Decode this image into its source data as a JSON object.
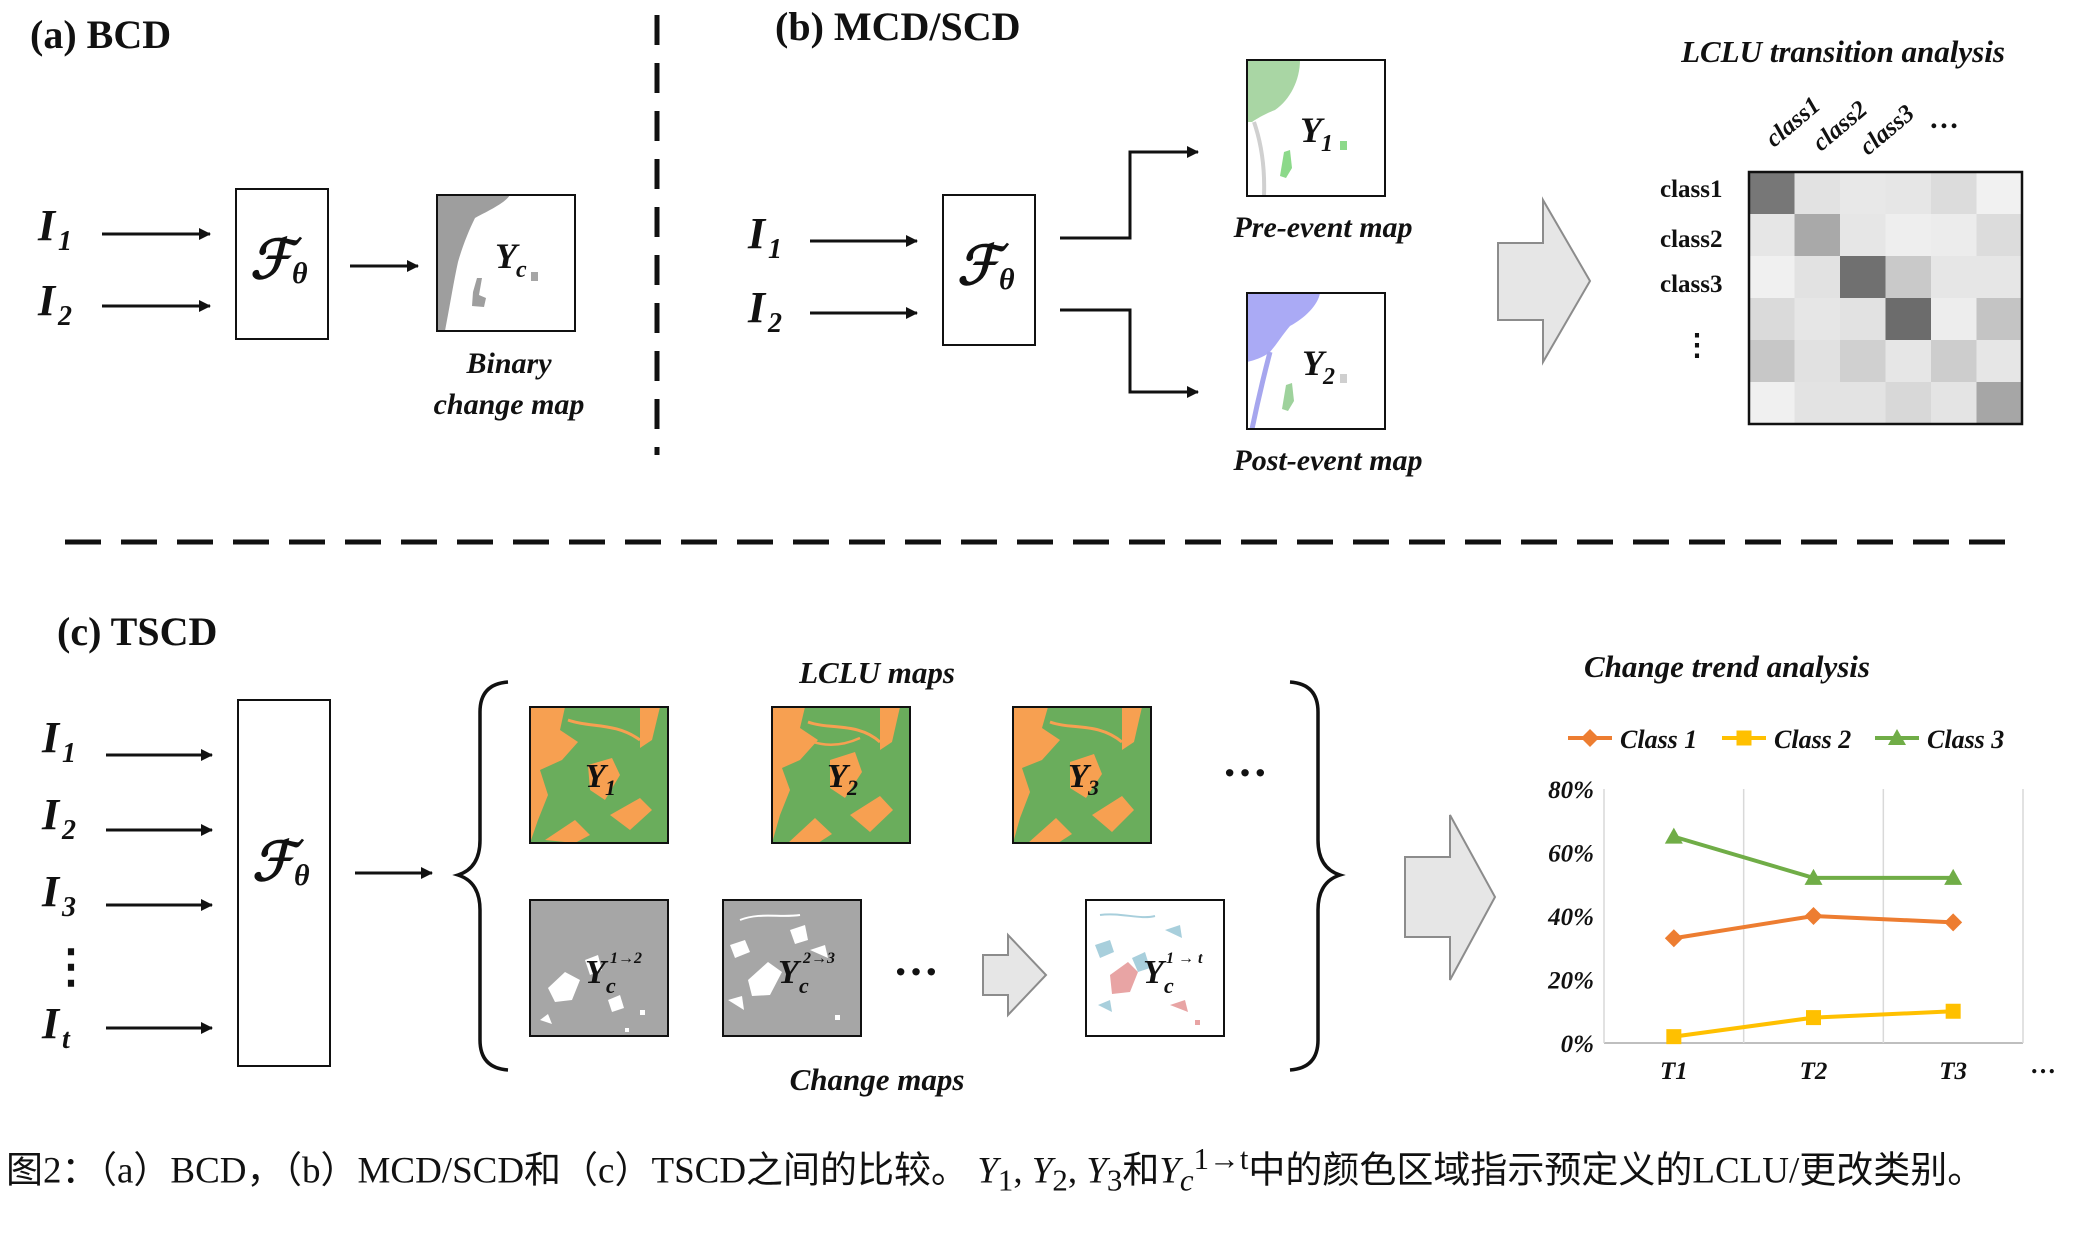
{
  "sections": {
    "a": "(a) BCD",
    "b": "(b) MCD/SCD",
    "c": "(c) TSCD"
  },
  "inputs": {
    "i1": "I",
    "s1": "1",
    "i2": "I",
    "s2": "2",
    "i3": "I",
    "s3": "3",
    "it": "I",
    "st": "t",
    "vdots": "⋮"
  },
  "model": {
    "f": "ℱ",
    "sub": "θ"
  },
  "bcd": {
    "map_symbol": "Y",
    "map_sub": "c",
    "label_line1": "Binary",
    "label_line2": "change map"
  },
  "mcd": {
    "pre_symbol": "Y",
    "pre_sub": "1",
    "post_symbol": "Y",
    "post_sub": "2",
    "pre_label": "Pre-event map",
    "post_label": "Post-event map"
  },
  "transition": {
    "title": "LCLU transition analysis",
    "col_labels": [
      "class1",
      "class2",
      "class3",
      "…"
    ],
    "row_labels": [
      "class1",
      "class2",
      "class3",
      "⋮"
    ],
    "colors": [
      [
        "#777777",
        "#e2e2e2",
        "#e8e8e8",
        "#e6e6e6",
        "#dcdcdc",
        "#f1f1f1"
      ],
      [
        "#e6e6e6",
        "#a9a9a9",
        "#e6e6e6",
        "#eeeeee",
        "#ececec",
        "#dcdcdc"
      ],
      [
        "#f0f0f0",
        "#e2e2e2",
        "#707070",
        "#c9c9c9",
        "#e6e6e6",
        "#e6e6e6"
      ],
      [
        "#dadada",
        "#e6e6e6",
        "#e2e2e2",
        "#6c6c6c",
        "#ededed",
        "#c4c4c4"
      ],
      [
        "#c7c7c7",
        "#e1e1e1",
        "#d0d0d0",
        "#e6e6e6",
        "#cdcdcd",
        "#e6e6e6"
      ],
      [
        "#f0f0f0",
        "#e3e3e3",
        "#e3e3e3",
        "#d8d8d8",
        "#e4e4e4",
        "#a6a6a6"
      ]
    ]
  },
  "tscd": {
    "lclu_title": "LCLU maps",
    "change_title": "Change maps",
    "maps": [
      {
        "symbol": "Y",
        "sub": "1"
      },
      {
        "symbol": "Y",
        "sub": "2"
      },
      {
        "symbol": "Y",
        "sub": "3"
      }
    ],
    "change_maps": [
      {
        "symbol": "Y",
        "sub": "c",
        "sup": "1→2"
      },
      {
        "symbol": "Y",
        "sub": "c",
        "sup": "2→3"
      },
      {
        "symbol": "Y",
        "sub": "c",
        "sup": "1 → t"
      }
    ],
    "ellipsis": "···",
    "lclu_colors": {
      "green": "#6aad5c",
      "orange": "#f7a051"
    }
  },
  "chart_data": {
    "type": "line",
    "title": "Change trend analysis",
    "x": [
      "T1",
      "T2",
      "T3"
    ],
    "x_extra_tick": "…",
    "series": [
      {
        "name": "Class 1",
        "values": [
          33,
          40,
          38
        ],
        "color": "#ed7d31",
        "marker": "diamond"
      },
      {
        "name": "Class 2",
        "values": [
          2,
          8,
          10
        ],
        "color": "#ffc000",
        "marker": "square"
      },
      {
        "name": "Class 3",
        "values": [
          65,
          52,
          52
        ],
        "color": "#70ad47",
        "marker": "triangle"
      }
    ],
    "yticks": [
      "0%",
      "20%",
      "40%",
      "60%",
      "80%"
    ],
    "ylim": [
      0,
      80
    ],
    "legend": "top",
    "grid": "vertical"
  },
  "caption": {
    "p1": "图2：（a）BCD，（b）MCD/SCD和（c）TSCD之间的比较。 ",
    "m1": "Y",
    "m1sub": "1",
    "comma1": ", ",
    "m2": "Y",
    "m2sub": "2",
    "comma2": ", ",
    "m3": "Y",
    "m3sub": "3",
    "and": "和",
    "m4": "Y",
    "m4sup": "1→t",
    "m4sub": "c",
    "p2": "中的颜色区域指示预定义的LCLU/更改类别。"
  }
}
